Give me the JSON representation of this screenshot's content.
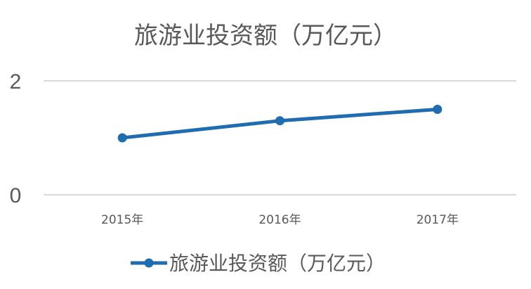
{
  "chart_data": {
    "type": "line",
    "title": "旅游业投资额（万亿元）",
    "categories": [
      "2015年",
      "2016年",
      "2017年"
    ],
    "series": [
      {
        "name": "旅游业投资额（万亿元）",
        "values": [
          1.0,
          1.3,
          1.5
        ],
        "color": "#1f6db0"
      }
    ],
    "yticks": [
      "0",
      "2"
    ],
    "ylim": [
      0,
      2
    ],
    "grid": true,
    "legend": "bottom",
    "gridline_color": "#d9d9d9",
    "text_color": "#595959"
  }
}
